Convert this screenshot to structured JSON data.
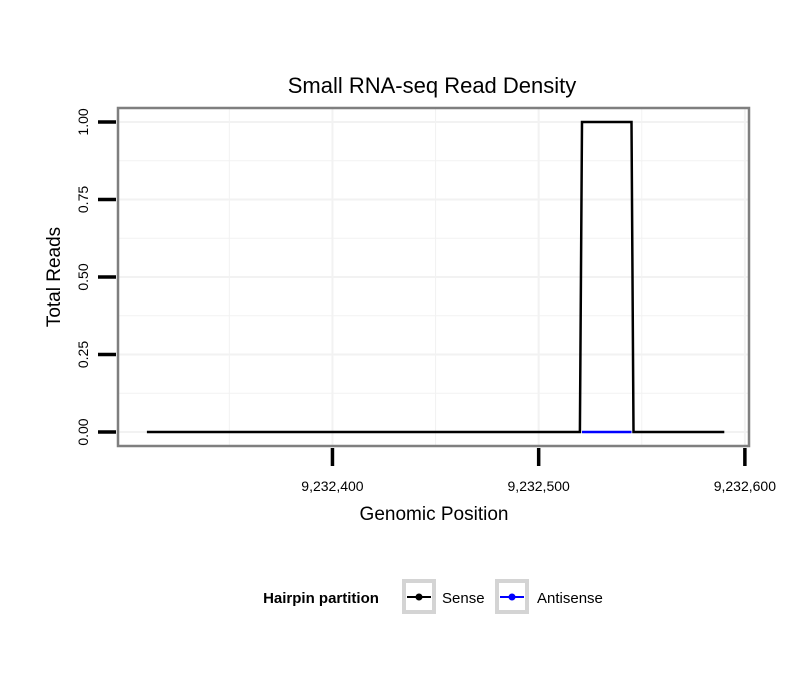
{
  "chart_data": {
    "type": "line",
    "title": "Small RNA-seq Read Density",
    "xlabel": "Genomic Position",
    "ylabel": "Total Reads",
    "xlim": [
      9232296,
      9232602
    ],
    "ylim": [
      -0.045,
      1.045
    ],
    "x_ticks": [
      {
        "value": 9232400,
        "label": "9,232,400"
      },
      {
        "value": 9232500,
        "label": "9,232,500"
      },
      {
        "value": 9232600,
        "label": "9,232,600"
      }
    ],
    "y_ticks": [
      {
        "value": 0.0,
        "label": "0.00"
      },
      {
        "value": 0.25,
        "label": "0.25"
      },
      {
        "value": 0.5,
        "label": "0.50"
      },
      {
        "value": 0.75,
        "label": "0.75"
      },
      {
        "value": 1.0,
        "label": "1.00"
      }
    ],
    "grid": true,
    "legend": {
      "title": "Hairpin partition",
      "position": "bottom"
    },
    "series": [
      {
        "name": "Sense",
        "color": "#000000",
        "x": [
          9232310,
          9232520,
          9232521,
          9232545,
          9232546,
          9232590
        ],
        "values": [
          0,
          0,
          1,
          1,
          0,
          0
        ]
      },
      {
        "name": "Antisense",
        "color": "#0000ff",
        "x": [
          9232521,
          9232545
        ],
        "values": [
          0,
          0
        ]
      }
    ]
  }
}
